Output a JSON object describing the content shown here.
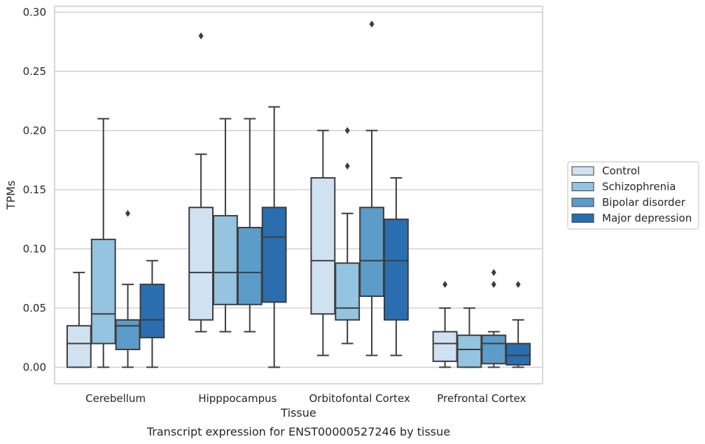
{
  "caption": "Transcript expression for ENST00000527246 by tissue",
  "chart_data": {
    "type": "box",
    "xlabel": "Tissue",
    "ylabel": "TPMs",
    "ylim": [
      -0.014,
      0.305
    ],
    "yticks": [
      "0.00",
      "0.05",
      "0.10",
      "0.15",
      "0.20",
      "0.25",
      "0.30"
    ],
    "ytick_values": [
      0,
      0.05,
      0.1,
      0.15,
      0.2,
      0.25,
      0.3
    ],
    "grid": "horizontal",
    "categories": [
      "Cerebellum",
      "Hipppocampus",
      "Orbitofontal Cortex",
      "Prefrontal Cortex"
    ],
    "legend_position": "right",
    "series": [
      {
        "name": "Control",
        "color": "#d0e1f2",
        "boxes": [
          {
            "whisker_low": 0,
            "q1": 0,
            "median": 0.02,
            "q3": 0.035,
            "whisker_high": 0.08,
            "outliers": []
          },
          {
            "whisker_low": 0.03,
            "q1": 0.04,
            "median": 0.08,
            "q3": 0.135,
            "whisker_high": 0.18,
            "outliers": [
              0.28
            ]
          },
          {
            "whisker_low": 0.01,
            "q1": 0.045,
            "median": 0.09,
            "q3": 0.16,
            "whisker_high": 0.2,
            "outliers": []
          },
          {
            "whisker_low": 0,
            "q1": 0.005,
            "median": 0.02,
            "q3": 0.03,
            "whisker_high": 0.05,
            "outliers": [
              0.07
            ]
          }
        ]
      },
      {
        "name": "Schizophrenia",
        "color": "#94c4df",
        "boxes": [
          {
            "whisker_low": 0,
            "q1": 0.02,
            "median": 0.045,
            "q3": 0.108,
            "whisker_high": 0.21,
            "outliers": []
          },
          {
            "whisker_low": 0.03,
            "q1": 0.053,
            "median": 0.08,
            "q3": 0.128,
            "whisker_high": 0.21,
            "outliers": []
          },
          {
            "whisker_low": 0.02,
            "q1": 0.04,
            "median": 0.05,
            "q3": 0.088,
            "whisker_high": 0.13,
            "outliers": [
              0.17,
              0.2
            ]
          },
          {
            "whisker_low": 0,
            "q1": 0,
            "median": 0.015,
            "q3": 0.027,
            "whisker_high": 0.05,
            "outliers": []
          }
        ]
      },
      {
        "name": "Bipolar disorder",
        "color": "#5b9cc9",
        "boxes": [
          {
            "whisker_low": 0,
            "q1": 0.015,
            "median": 0.035,
            "q3": 0.04,
            "whisker_high": 0.07,
            "outliers": [
              0.13
            ]
          },
          {
            "whisker_low": 0.03,
            "q1": 0.053,
            "median": 0.08,
            "q3": 0.118,
            "whisker_high": 0.21,
            "outliers": []
          },
          {
            "whisker_low": 0.01,
            "q1": 0.06,
            "median": 0.09,
            "q3": 0.135,
            "whisker_high": 0.2,
            "outliers": [
              0.29
            ]
          },
          {
            "whisker_low": 0,
            "q1": 0.003,
            "median": 0.02,
            "q3": 0.027,
            "whisker_high": 0.03,
            "outliers": [
              0.07,
              0.08
            ]
          }
        ]
      },
      {
        "name": "Major depression",
        "color": "#2a6eaf",
        "boxes": [
          {
            "whisker_low": 0,
            "q1": 0.025,
            "median": 0.04,
            "q3": 0.07,
            "whisker_high": 0.09,
            "outliers": []
          },
          {
            "whisker_low": 0,
            "q1": 0.055,
            "median": 0.11,
            "q3": 0.135,
            "whisker_high": 0.22,
            "outliers": []
          },
          {
            "whisker_low": 0.01,
            "q1": 0.04,
            "median": 0.09,
            "q3": 0.125,
            "whisker_high": 0.16,
            "outliers": []
          },
          {
            "whisker_low": 0,
            "q1": 0.002,
            "median": 0.01,
            "q3": 0.02,
            "whisker_high": 0.04,
            "outliers": [
              0.07
            ]
          }
        ]
      }
    ]
  }
}
